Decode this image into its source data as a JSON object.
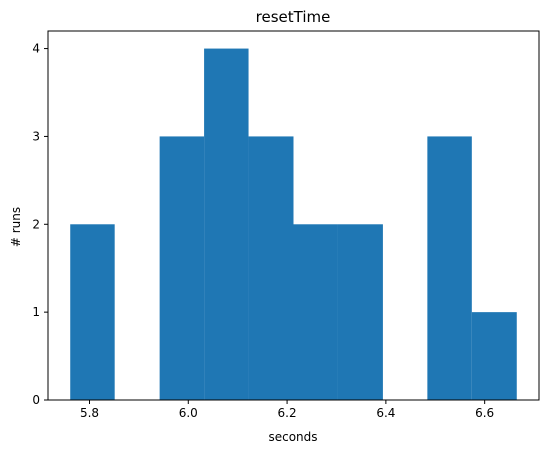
{
  "chart_data": {
    "type": "bar",
    "subtype": "histogram",
    "title": "resetTime",
    "xlabel": "seconds",
    "ylabel": "# runs",
    "bins": [
      {
        "start": 5.761,
        "end": 5.851,
        "count": 2
      },
      {
        "start": 5.851,
        "end": 5.942,
        "count": 0
      },
      {
        "start": 5.942,
        "end": 6.032,
        "count": 3
      },
      {
        "start": 6.032,
        "end": 6.122,
        "count": 4
      },
      {
        "start": 6.122,
        "end": 6.213,
        "count": 3
      },
      {
        "start": 6.213,
        "end": 6.303,
        "count": 2
      },
      {
        "start": 6.303,
        "end": 6.394,
        "count": 2
      },
      {
        "start": 6.394,
        "end": 6.484,
        "count": 0
      },
      {
        "start": 6.484,
        "end": 6.574,
        "count": 3
      },
      {
        "start": 6.574,
        "end": 6.665,
        "count": 1
      }
    ],
    "xlim": [
      5.716,
      6.71
    ],
    "ylim": [
      0,
      4.2
    ],
    "xticks": [
      5.8,
      6.0,
      6.2,
      6.4,
      6.6
    ],
    "xtick_labels": [
      "5.8",
      "6.0",
      "6.2",
      "6.4",
      "6.6"
    ],
    "yticks": [
      0,
      1,
      2,
      3,
      4
    ],
    "ytick_labels": [
      "0",
      "1",
      "2",
      "3",
      "4"
    ],
    "bar_color": "#1f77b4",
    "grid": false,
    "legend": "none"
  }
}
